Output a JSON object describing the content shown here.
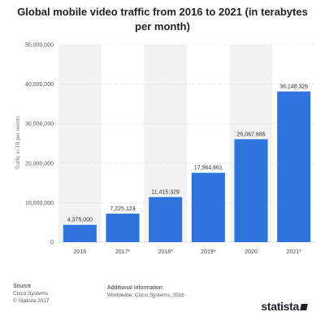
{
  "title": "Global mobile video traffic from 2016 to 2021 (in terabytes per month)",
  "footer": {
    "source_label": "Source",
    "source_lines": [
      "Cisco Systems",
      "© Statista 2017"
    ],
    "info_label": "Additional Information:",
    "info_text": "Worldwide; Cisco Systems; 2016",
    "logo": "statista"
  },
  "colors": {
    "bar": "#2f74dc",
    "band": "#f2f2f2",
    "grid": "#d8d8d8"
  },
  "chart_data": {
    "type": "bar",
    "title": "Global mobile video traffic from 2016 to 2021 (in terabytes per month)",
    "ylabel": "Traffic in TB per month",
    "xlabel": "",
    "categories": [
      "2016",
      "2017*",
      "2018*",
      "2019*",
      "2020",
      "2021*"
    ],
    "values": [
      4375000,
      7225123,
      11415329,
      17564661,
      26067686,
      38148326
    ],
    "value_labels": [
      "4,375,000",
      "7,225,123",
      "11,415,329",
      "17,564,661",
      "26,067,686",
      "38,148,326"
    ],
    "yticks": [
      0,
      10000000,
      20000000,
      30000000,
      40000000,
      50000000
    ],
    "ytick_labels": [
      "0",
      "10,000,000",
      "20,000,000",
      "30,000,000",
      "40,000,000",
      "50,000,000"
    ],
    "ylim": [
      0,
      50000000
    ],
    "grid": true
  }
}
